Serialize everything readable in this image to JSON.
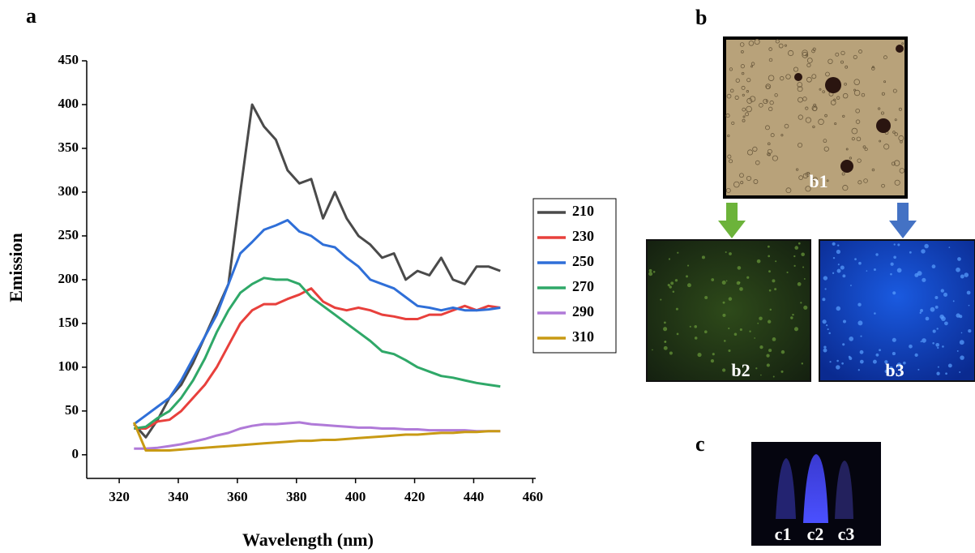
{
  "chart_data": {
    "type": "line",
    "xlabel": "Wavelength (nm)",
    "ylabel": "Emission",
    "x": [
      325,
      329,
      333,
      337,
      341,
      345,
      349,
      353,
      357,
      361,
      365,
      369,
      373,
      377,
      381,
      385,
      389,
      393,
      397,
      401,
      405,
      409,
      413,
      417,
      421,
      425,
      429,
      433,
      437,
      441,
      445,
      449
    ],
    "series": [
      {
        "name": "210",
        "color": "#4a4a4a",
        "values": [
          35,
          20,
          40,
          65,
          80,
          105,
          135,
          165,
          195,
          300,
          400,
          375,
          360,
          325,
          310,
          315,
          270,
          300,
          270,
          250,
          240,
          225,
          230,
          200,
          210,
          205,
          225,
          200,
          195,
          215,
          215,
          210
        ]
      },
      {
        "name": "230",
        "color": "#e8403c",
        "values": [
          30,
          30,
          38,
          40,
          50,
          65,
          80,
          100,
          125,
          150,
          165,
          172,
          172,
          178,
          183,
          190,
          175,
          168,
          165,
          168,
          165,
          160,
          158,
          155,
          155,
          160,
          160,
          165,
          170,
          165,
          170,
          168
        ]
      },
      {
        "name": "250",
        "color": "#2f6fd8",
        "values": [
          35,
          45,
          55,
          65,
          85,
          110,
          135,
          160,
          195,
          230,
          243,
          257,
          262,
          268,
          255,
          250,
          240,
          237,
          225,
          215,
          200,
          195,
          190,
          180,
          170,
          168,
          165,
          168,
          165,
          165,
          166,
          168
        ]
      },
      {
        "name": "270",
        "color": "#2fa868",
        "values": [
          30,
          32,
          42,
          50,
          65,
          85,
          110,
          140,
          165,
          185,
          195,
          202,
          200,
          200,
          195,
          180,
          170,
          160,
          150,
          140,
          130,
          118,
          115,
          108,
          100,
          95,
          90,
          88,
          85,
          82,
          80,
          78
        ]
      },
      {
        "name": "290",
        "color": "#b07ad8",
        "values": [
          7,
          7,
          8,
          10,
          12,
          15,
          18,
          22,
          25,
          30,
          33,
          35,
          35,
          36,
          37,
          35,
          34,
          33,
          32,
          31,
          31,
          30,
          30,
          29,
          29,
          28,
          28,
          28,
          28,
          27,
          27,
          27
        ]
      },
      {
        "name": "310",
        "color": "#c89a14",
        "values": [
          37,
          5,
          5,
          5,
          6,
          7,
          8,
          9,
          10,
          11,
          12,
          13,
          14,
          15,
          16,
          16,
          17,
          17,
          18,
          19,
          20,
          21,
          22,
          23,
          23,
          24,
          25,
          25,
          26,
          26,
          27,
          27
        ]
      }
    ],
    "xlim": [
      309,
      461
    ],
    "xticks": [
      320,
      340,
      360,
      380,
      400,
      420,
      440,
      460
    ],
    "ylim": [
      -27,
      450
    ],
    "yticks": [
      0,
      50,
      100,
      150,
      200,
      250,
      300,
      350,
      400,
      450
    ],
    "legend": "right",
    "grid": false
  },
  "panels": {
    "a": "a",
    "b": "b",
    "c": "c"
  },
  "images": {
    "b1": "b1",
    "b2": "b2",
    "b3": "b3",
    "c1": "c1",
    "c2": "c2",
    "c3": "c3"
  }
}
